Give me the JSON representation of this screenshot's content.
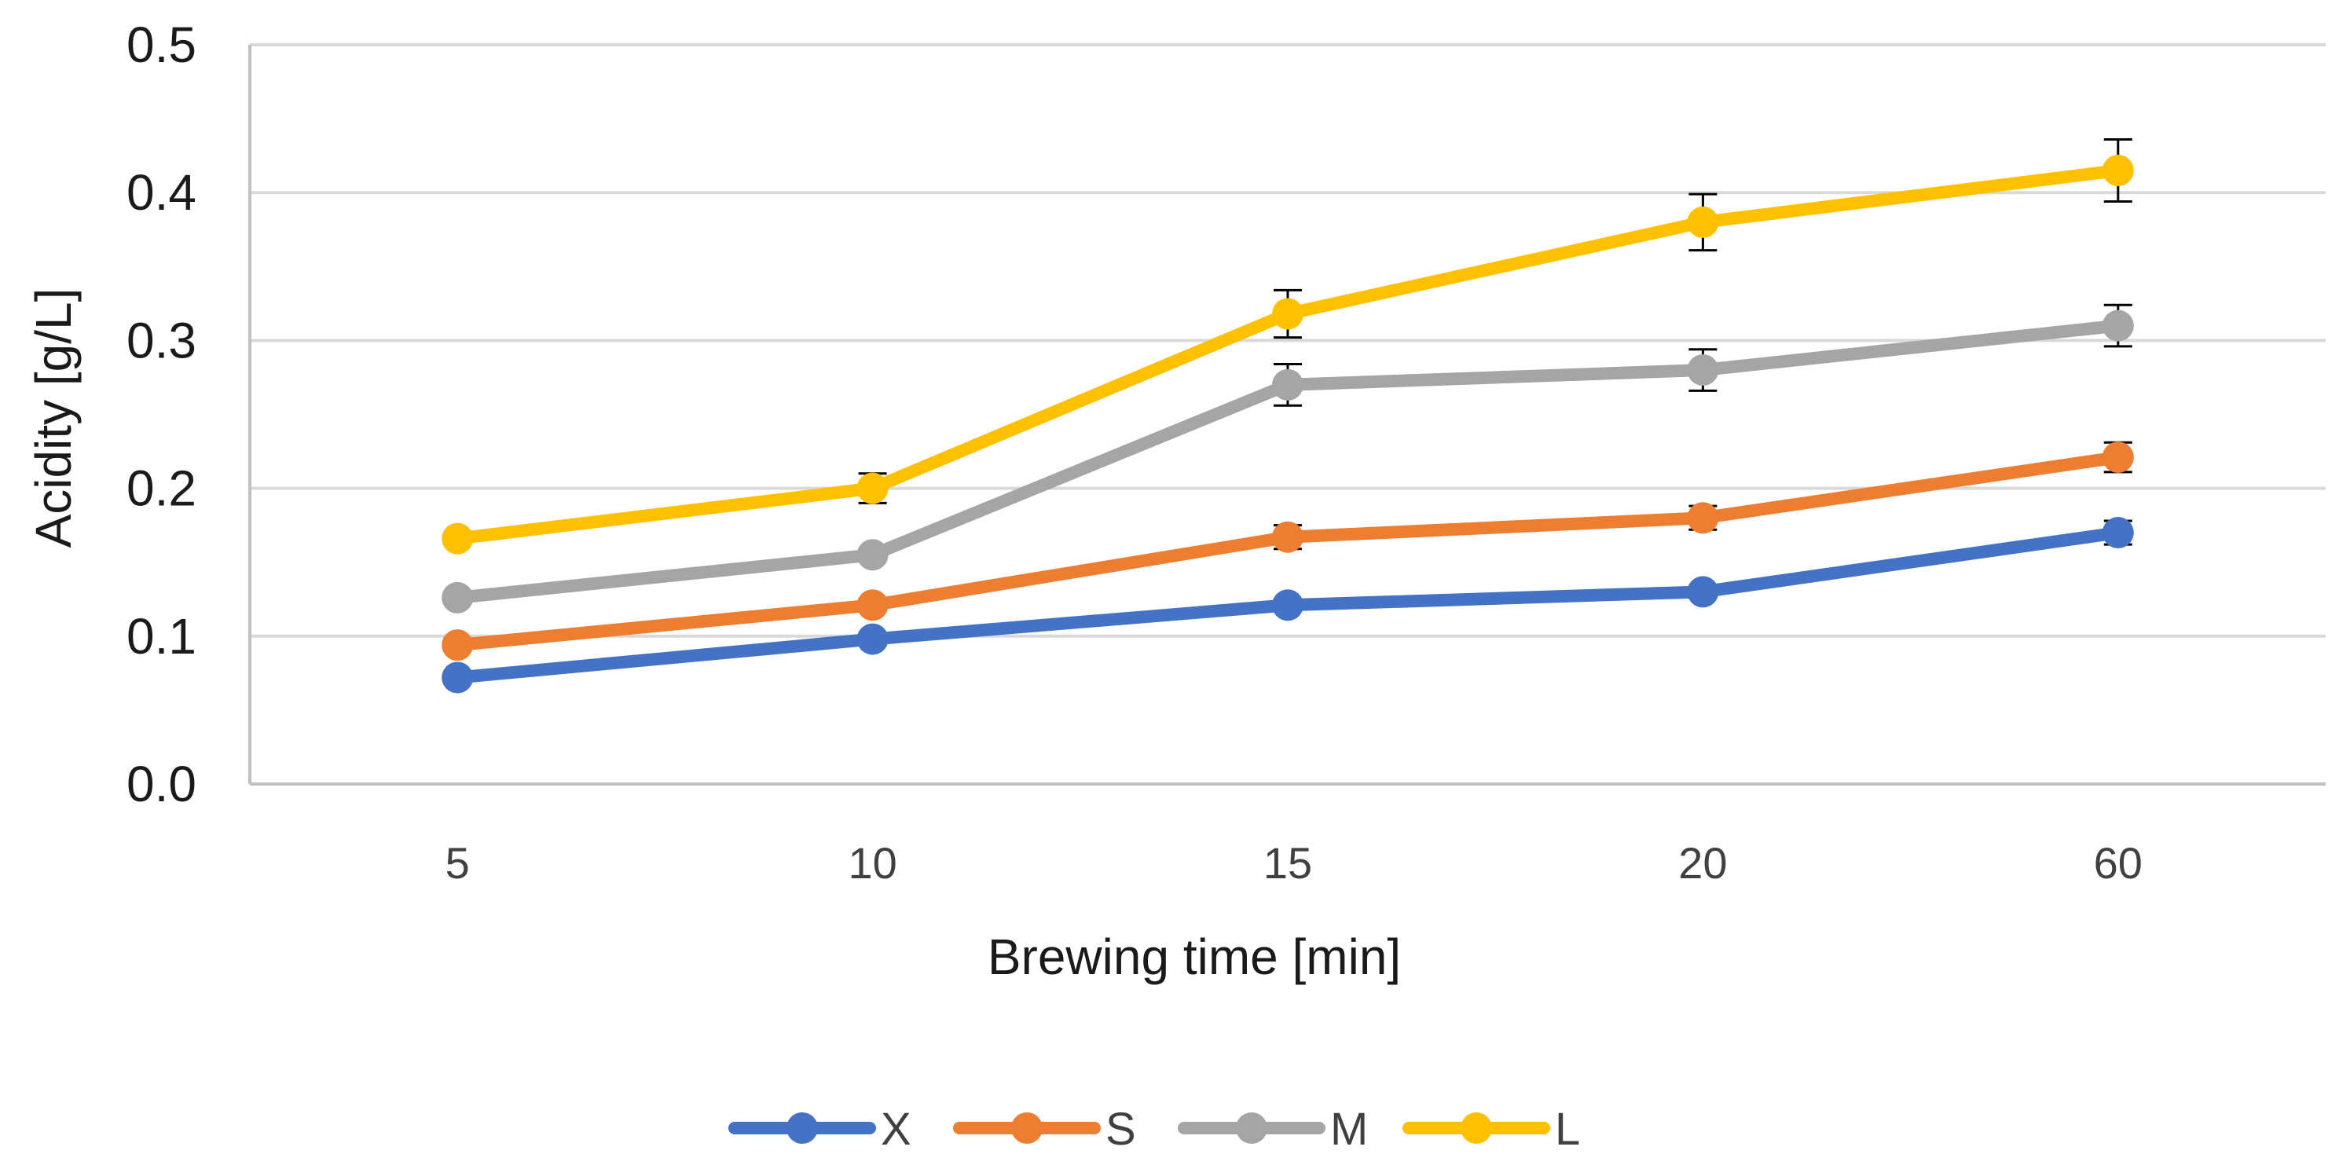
{
  "chart_data": {
    "type": "line",
    "title": "",
    "xlabel": "Brewing time [min]",
    "ylabel": "Acidity [g/L]",
    "categories": [
      "5",
      "10",
      "15",
      "20",
      "60"
    ],
    "ylim": [
      0,
      0.5
    ],
    "yticks": [
      "0.0",
      "0.1",
      "0.2",
      "0.3",
      "0.4",
      "0.5"
    ],
    "grid": true,
    "legend_position": "bottom-center",
    "series": [
      {
        "name": "X",
        "color": "#4472C4",
        "values": [
          0.072,
          0.098,
          0.121,
          0.13,
          0.17
        ],
        "errors": [
          0.004,
          0.004,
          0.004,
          0.004,
          0.008
        ]
      },
      {
        "name": "S",
        "color": "#ED7D31",
        "values": [
          0.094,
          0.121,
          0.167,
          0.18,
          0.221
        ],
        "errors": [
          0.004,
          0.004,
          0.008,
          0.008,
          0.01
        ]
      },
      {
        "name": "M",
        "color": "#A5A5A5",
        "values": [
          0.126,
          0.155,
          0.27,
          0.28,
          0.31
        ],
        "errors": [
          0.004,
          0.004,
          0.014,
          0.014,
          0.014
        ]
      },
      {
        "name": "L",
        "color": "#FFC000",
        "values": [
          0.166,
          0.2,
          0.318,
          0.38,
          0.415
        ],
        "errors": [
          0.004,
          0.01,
          0.016,
          0.019,
          0.021
        ]
      }
    ]
  }
}
